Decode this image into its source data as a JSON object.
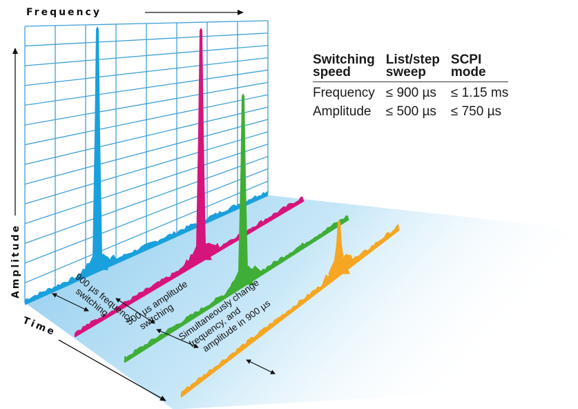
{
  "axes": {
    "frequency": "Frequency",
    "amplitude": "Amplitude",
    "time": "Time"
  },
  "annotations": {
    "freq_switch": [
      "900 µs frequency",
      "switching"
    ],
    "amp_switch": [
      "500 µs amplitude",
      "switching"
    ],
    "simultaneous": [
      "Simultaneously change",
      "frequency, and",
      "amplitude in 900 µs"
    ]
  },
  "spec_table": {
    "headers": [
      [
        "Switching",
        "speed"
      ],
      [
        "List/step",
        "sweep"
      ],
      [
        "SCPI",
        "mode"
      ]
    ],
    "rows": [
      [
        "Frequency",
        "≤ 900 µs",
        "≤ 1.15 ms"
      ],
      [
        "Amplitude",
        "≤ 500 µs",
        "≤ 750 µs"
      ]
    ]
  },
  "colors": {
    "grid": "#3d9fd6",
    "plane": "#bfe3f6",
    "trace_1": "#1aa0dc",
    "trace_2": "#d6157c",
    "trace_3": "#3fae36",
    "trace_4": "#f5a623",
    "text": "#111111"
  }
}
